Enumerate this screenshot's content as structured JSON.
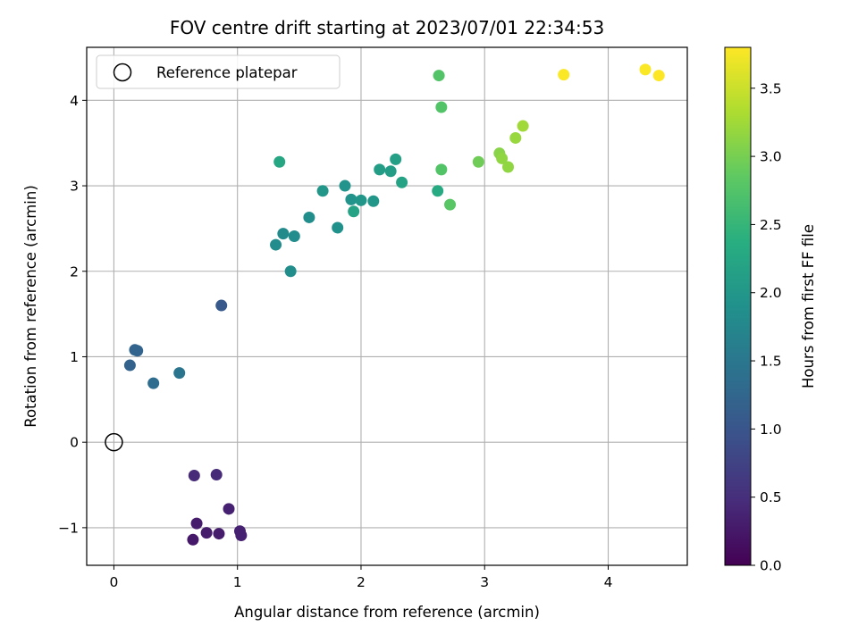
{
  "chart_data": {
    "type": "scatter",
    "title": "FOV centre drift starting at 2023/07/01 22:34:53",
    "xlabel": "Angular distance from reference (arcmin)",
    "ylabel": "Rotation from reference (arcmin)",
    "xlim": [
      -0.22,
      4.64
    ],
    "ylim": [
      -1.44,
      4.62
    ],
    "xticks": [
      0,
      1,
      2,
      3,
      4
    ],
    "yticks": [
      -1,
      0,
      1,
      2,
      3,
      4
    ],
    "xtick_labels": [
      "0",
      "1",
      "2",
      "3",
      "4"
    ],
    "ytick_labels": [
      "−1",
      "0",
      "1",
      "2",
      "3",
      "4"
    ],
    "grid": true,
    "legend": {
      "position": "upper-left",
      "entries": [
        "Reference platepar"
      ]
    },
    "reference_point": {
      "x": 0,
      "y": 0
    },
    "colormap": "viridis",
    "colorbar": {
      "label": "Hours from first FF file",
      "range": [
        0,
        3.8
      ],
      "ticks": [
        0,
        0.5,
        1,
        1.5,
        2,
        2.5,
        3,
        3.5
      ],
      "tick_labels": [
        "0.0",
        "0.5",
        "1.0",
        "1.5",
        "2.0",
        "2.5",
        "3.0",
        "3.5"
      ]
    },
    "points": [
      {
        "x": 0.64,
        "y": -1.14,
        "c": 0.25
      },
      {
        "x": 0.75,
        "y": -1.06,
        "c": 0.3
      },
      {
        "x": 0.85,
        "y": -1.07,
        "c": 0.3
      },
      {
        "x": 1.02,
        "y": -1.04,
        "c": 0.35
      },
      {
        "x": 1.03,
        "y": -1.09,
        "c": 0.35
      },
      {
        "x": 0.67,
        "y": -0.95,
        "c": 0.3
      },
      {
        "x": 0.93,
        "y": -0.78,
        "c": 0.35
      },
      {
        "x": 0.65,
        "y": -0.39,
        "c": 0.45
      },
      {
        "x": 0.83,
        "y": -0.38,
        "c": 0.45
      },
      {
        "x": 0.87,
        "y": 1.6,
        "c": 1.05
      },
      {
        "x": 0.13,
        "y": 0.9,
        "c": 1.2
      },
      {
        "x": 0.17,
        "y": 1.08,
        "c": 1.2
      },
      {
        "x": 0.19,
        "y": 1.07,
        "c": 1.22
      },
      {
        "x": 0.32,
        "y": 0.69,
        "c": 1.35
      },
      {
        "x": 0.53,
        "y": 0.81,
        "c": 1.45
      },
      {
        "x": 1.34,
        "y": 3.28,
        "c": 2.25
      },
      {
        "x": 1.43,
        "y": 2.0,
        "c": 1.85
      },
      {
        "x": 1.31,
        "y": 2.31,
        "c": 1.82
      },
      {
        "x": 1.37,
        "y": 2.44,
        "c": 1.8
      },
      {
        "x": 1.46,
        "y": 2.41,
        "c": 1.82
      },
      {
        "x": 1.58,
        "y": 2.63,
        "c": 1.85
      },
      {
        "x": 1.69,
        "y": 2.94,
        "c": 2.0
      },
      {
        "x": 1.81,
        "y": 2.51,
        "c": 1.9
      },
      {
        "x": 1.87,
        "y": 3.0,
        "c": 1.95
      },
      {
        "x": 1.92,
        "y": 2.84,
        "c": 1.95
      },
      {
        "x": 1.94,
        "y": 2.7,
        "c": 2.2
      },
      {
        "x": 2.0,
        "y": 2.83,
        "c": 2.0
      },
      {
        "x": 2.1,
        "y": 2.82,
        "c": 2.0
      },
      {
        "x": 2.15,
        "y": 3.19,
        "c": 2.1
      },
      {
        "x": 2.24,
        "y": 3.17,
        "c": 2.1
      },
      {
        "x": 2.28,
        "y": 3.31,
        "c": 2.15
      },
      {
        "x": 2.33,
        "y": 3.04,
        "c": 2.2
      },
      {
        "x": 2.62,
        "y": 2.94,
        "c": 2.3
      },
      {
        "x": 2.63,
        "y": 4.29,
        "c": 2.75
      },
      {
        "x": 2.65,
        "y": 3.92,
        "c": 2.75
      },
      {
        "x": 2.65,
        "y": 3.19,
        "c": 2.75
      },
      {
        "x": 2.72,
        "y": 2.78,
        "c": 2.8
      },
      {
        "x": 2.95,
        "y": 3.28,
        "c": 2.95
      },
      {
        "x": 3.12,
        "y": 3.38,
        "c": 3.1
      },
      {
        "x": 3.14,
        "y": 3.32,
        "c": 3.15
      },
      {
        "x": 3.19,
        "y": 3.22,
        "c": 3.15
      },
      {
        "x": 3.25,
        "y": 3.56,
        "c": 3.2
      },
      {
        "x": 3.31,
        "y": 3.7,
        "c": 3.25
      },
      {
        "x": 3.64,
        "y": 4.3,
        "c": 3.78
      },
      {
        "x": 4.3,
        "y": 4.36,
        "c": 3.78
      },
      {
        "x": 4.41,
        "y": 4.29,
        "c": 3.8
      }
    ]
  }
}
